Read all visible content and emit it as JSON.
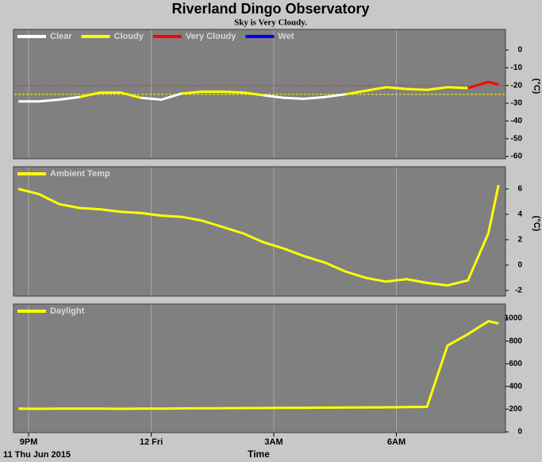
{
  "header": {
    "title": "Riverland Dingo Observatory",
    "subtitle": "Sky is Very Cloudy."
  },
  "x_axis": {
    "label": "Time",
    "date": "11 Thu Jun 2015",
    "xlim": [
      20.63,
      32.67
    ],
    "xticks": [
      {
        "value": 21,
        "label": "9PM"
      },
      {
        "value": 24,
        "label": "12 Fri"
      },
      {
        "value": 27,
        "label": "3AM"
      },
      {
        "value": 30,
        "label": "6AM"
      }
    ]
  },
  "chart_data": [
    {
      "type": "line",
      "ylabel": "(°C)",
      "ylim": [
        -61.3,
        11.6
      ],
      "yticks": [
        0,
        -10,
        -20,
        -30,
        -40,
        -50,
        -60
      ],
      "thresholds": [
        {
          "value": -20,
          "color": "#ff2020"
        },
        {
          "value": -25,
          "color": "#ffff00"
        }
      ],
      "x": [
        20.75,
        21.25,
        21.75,
        22.25,
        22.75,
        23.25,
        23.75,
        24.25,
        24.75,
        25.25,
        25.75,
        26.25,
        26.75,
        27.25,
        27.75,
        28.25,
        28.75,
        29.25,
        29.75,
        30.25,
        30.75,
        31.25,
        31.75,
        32.25,
        32.5
      ],
      "series": [
        {
          "name": "Clear",
          "color": "#ffffff",
          "values": [
            -29,
            -29,
            -28,
            -26.5,
            null,
            null,
            -27,
            -28,
            -24.5,
            null,
            null,
            null,
            -25.5,
            -27,
            -27.5,
            -26.5,
            -25,
            null,
            null,
            null,
            null,
            null,
            null,
            null,
            null
          ]
        },
        {
          "name": "Cloudy",
          "color": "#ffff00",
          "values": [
            null,
            null,
            null,
            -26.5,
            -24,
            -24,
            -27,
            null,
            -24.5,
            -23.5,
            -23.5,
            -24,
            -25.5,
            null,
            null,
            null,
            -25,
            -23,
            -21,
            -22,
            -22.5,
            -21,
            -21.5,
            null,
            null
          ]
        },
        {
          "name": "Very Cloudy",
          "color": "#ff0000",
          "values": [
            null,
            null,
            null,
            null,
            null,
            null,
            null,
            null,
            null,
            null,
            null,
            null,
            null,
            null,
            null,
            null,
            null,
            null,
            null,
            null,
            null,
            null,
            -21.5,
            -18,
            -19.5
          ]
        },
        {
          "name": "Wet",
          "color": "#0000ff",
          "values": [
            null,
            null,
            null,
            null,
            null,
            null,
            null,
            null,
            null,
            null,
            null,
            null,
            null,
            null,
            null,
            null,
            null,
            null,
            null,
            null,
            null,
            null,
            null,
            null,
            null
          ]
        }
      ]
    },
    {
      "type": "line",
      "ylabel": "(°C)",
      "ylim": [
        -2.44,
        7.75
      ],
      "yticks": [
        6,
        4,
        2,
        0,
        -2
      ],
      "x": [
        20.75,
        21.25,
        21.75,
        22.25,
        22.75,
        23.25,
        23.75,
        24.25,
        24.75,
        25.25,
        25.75,
        26.25,
        26.75,
        27.25,
        27.75,
        28.25,
        28.75,
        29.25,
        29.75,
        30.25,
        30.75,
        31.25,
        31.75,
        32.25,
        32.5
      ],
      "series": [
        {
          "name": "Ambient Temp",
          "color": "#ffff00",
          "values": [
            6.0,
            5.6,
            4.8,
            4.5,
            4.4,
            4.2,
            4.1,
            3.9,
            3.8,
            3.5,
            3.0,
            2.5,
            1.8,
            1.3,
            0.7,
            0.2,
            -0.5,
            -1.0,
            -1.3,
            -1.1,
            -1.4,
            -1.6,
            -1.2,
            2.5,
            6.3
          ]
        }
      ]
    },
    {
      "type": "line",
      "ylim": [
        -7,
        1126
      ],
      "yticks": [
        1000,
        800,
        600,
        400,
        200,
        0
      ],
      "x": [
        20.75,
        21.25,
        21.75,
        22.25,
        22.75,
        23.25,
        23.75,
        24.25,
        24.75,
        25.25,
        25.75,
        26.25,
        26.75,
        27.25,
        27.75,
        28.25,
        28.75,
        29.25,
        29.75,
        30.25,
        30.75,
        31.25,
        31.75,
        32.25,
        32.5
      ],
      "series": [
        {
          "name": "Daylight",
          "color": "#ffff00",
          "values": [
            205,
            203,
            205,
            204,
            205,
            203,
            204,
            205,
            206,
            207,
            208,
            209,
            210,
            211,
            212,
            213,
            214,
            215,
            216,
            218,
            220,
            760,
            860,
            975,
            955
          ]
        }
      ]
    }
  ]
}
